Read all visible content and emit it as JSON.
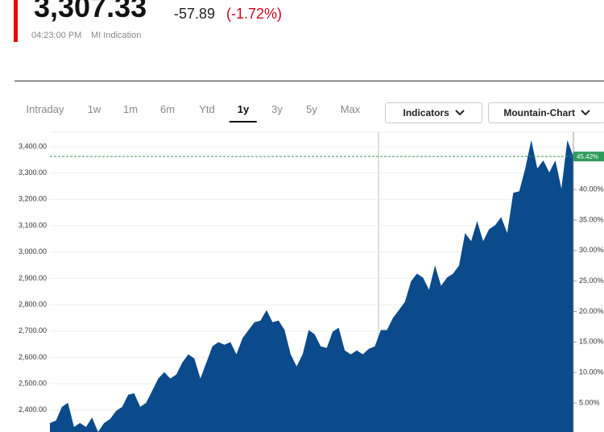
{
  "header": {
    "price": "3,307.33",
    "change": "-57.89",
    "change_pct": "(-1.72%)",
    "time": "04:23:00 PM",
    "source": "MI Indication"
  },
  "tabs": [
    "Intraday",
    "1w",
    "1m",
    "6m",
    "Ytd",
    "1y",
    "3y",
    "5y",
    "Max"
  ],
  "active_tab": "1y",
  "buttons": [
    "Indicators",
    "Mountain-Chart"
  ],
  "chart_data": {
    "type": "area",
    "color": "#0b4a8b",
    "values": [
      2351,
      2360,
      2412,
      2428,
      2336,
      2351,
      2336,
      2372,
      2317,
      2351,
      2366,
      2397,
      2412,
      2458,
      2464,
      2412,
      2428,
      2474,
      2520,
      2544,
      2520,
      2535,
      2581,
      2612,
      2596,
      2520,
      2581,
      2642,
      2658,
      2648,
      2658,
      2612,
      2673,
      2704,
      2734,
      2740,
      2780,
      2734,
      2740,
      2704,
      2612,
      2566,
      2612,
      2704,
      2688,
      2642,
      2636,
      2698,
      2713,
      2627,
      2612,
      2627,
      2612,
      2633,
      2642,
      2704,
      2704,
      2750,
      2780,
      2811,
      2888,
      2918,
      2903,
      2857,
      2949,
      2872,
      2903,
      2918,
      2949,
      3072,
      3041,
      3118,
      3041,
      3087,
      3102,
      3133,
      3072,
      3225,
      3231,
      3317,
      3425,
      3317,
      3348,
      3302,
      3348,
      3241,
      3425,
      3363
    ],
    "ylim": [
      2317,
      3455
    ],
    "yticks": [
      {
        "value": 2400,
        "label": "2,400.00"
      },
      {
        "value": 2500,
        "label": "2,500.00"
      },
      {
        "value": 2600,
        "label": "2,600.00"
      },
      {
        "value": 2700,
        "label": "2,700.00"
      },
      {
        "value": 2800,
        "label": "2,800.00"
      },
      {
        "value": 2900,
        "label": "2,900.00"
      },
      {
        "value": 3000,
        "label": "3,000.00"
      },
      {
        "value": 3100,
        "label": "3,100.00"
      },
      {
        "value": 3200,
        "label": "3,200.00"
      },
      {
        "value": 3300,
        "label": "3,300.00"
      },
      {
        "value": 3400,
        "label": "3,400.00"
      }
    ],
    "y2lim": [
      0.23,
      49.41
    ],
    "y2ticks": [
      {
        "value": 5,
        "label": "5.00%"
      },
      {
        "value": 10,
        "label": "10.00%"
      },
      {
        "value": 15,
        "label": "15.00%"
      },
      {
        "value": 20,
        "label": "20.00%"
      },
      {
        "value": 25,
        "label": "25.00%"
      },
      {
        "value": 30,
        "label": "30.00%"
      },
      {
        "value": 35,
        "label": "35.00%"
      },
      {
        "value": 40,
        "label": "40.00%"
      }
    ],
    "last_change": {
      "value": 45.42,
      "label": "45.42%"
    },
    "grid": true
  }
}
